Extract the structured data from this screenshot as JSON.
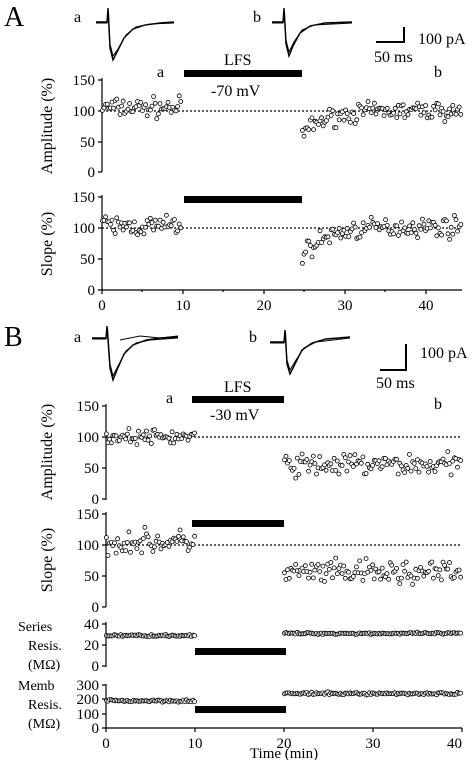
{
  "panels": {
    "A": {
      "label": "A",
      "trace_a_label": "a",
      "trace_b_label": "b",
      "scale_y_label": "100 pA",
      "scale_x_label": "50 ms",
      "lfs_label": "LFS",
      "voltage_label": "-70 mV",
      "marker_a": "a",
      "marker_b": "b",
      "amp_ylabel": "Amplitude (%)",
      "slope_ylabel": "Slope (%)",
      "x_ticks": [
        "0",
        "10",
        "20",
        "30",
        "40"
      ],
      "amp_y_ticks": [
        "150",
        "100",
        "50",
        "0"
      ],
      "slope_y_ticks": [
        "150",
        "100",
        "50",
        "0"
      ]
    },
    "B": {
      "label": "B",
      "trace_a_label": "a",
      "trace_b_label": "b",
      "scale_y_label": "100 pA",
      "scale_x_label": "50 ms",
      "lfs_label": "LFS",
      "voltage_label": "-30 mV",
      "marker_a": "a",
      "marker_b": "b",
      "amp_ylabel": "Amplitude (%)",
      "slope_ylabel": "Slope (%)",
      "series_label_1": "Series",
      "series_label_2": "Resis.",
      "series_label_3": "(MΩ)",
      "memb_label_1": "Memb",
      "memb_label_2": "Resis.",
      "memb_label_3": "(MΩ)",
      "x_ticks": [
        "0",
        "10",
        "20",
        "30",
        "40"
      ],
      "amp_y_ticks": [
        "150",
        "100",
        "50",
        "0"
      ],
      "slope_y_ticks": [
        "150",
        "100",
        "50",
        "0"
      ],
      "series_y_ticks": [
        "40",
        "20",
        "0"
      ],
      "memb_y_ticks": [
        "300",
        "200",
        "100",
        "0"
      ],
      "xlabel": "Time (min)"
    }
  },
  "chart_data": [
    {
      "panel": "A",
      "type": "scatter",
      "ylabel": "Amplitude (%)",
      "xlim": [
        0,
        45
      ],
      "ylim": [
        0,
        150
      ],
      "baseline": 100,
      "stim_bar": [
        10,
        25
      ],
      "segments": [
        {
          "x_range": [
            0,
            10
          ],
          "mean": 105,
          "spread": 12
        },
        {
          "x_range": [
            25,
            45
          ],
          "start": 62,
          "end": 100,
          "tau_min": 3,
          "spread": 11
        }
      ]
    },
    {
      "panel": "A",
      "type": "scatter",
      "ylabel": "Slope (%)",
      "xlim": [
        0,
        45
      ],
      "ylim": [
        0,
        150
      ],
      "baseline": 100,
      "stim_bar": [
        10,
        25
      ],
      "segments": [
        {
          "x_range": [
            0,
            10
          ],
          "mean": 103,
          "spread": 13
        },
        {
          "x_range": [
            25,
            45
          ],
          "start": 55,
          "end": 102,
          "tau_min": 3,
          "spread": 12
        }
      ]
    },
    {
      "panel": "B",
      "type": "scatter",
      "ylabel": "Amplitude (%)",
      "xlim": [
        0,
        40
      ],
      "ylim": [
        0,
        150
      ],
      "baseline": 100,
      "stim_bar": [
        10,
        20
      ],
      "segments": [
        {
          "x_range": [
            0,
            10
          ],
          "mean": 100,
          "spread": 9
        },
        {
          "x_range": [
            20,
            40
          ],
          "mean": 55,
          "spread": 14
        }
      ]
    },
    {
      "panel": "B",
      "type": "scatter",
      "ylabel": "Slope (%)",
      "xlim": [
        0,
        40
      ],
      "ylim": [
        0,
        150
      ],
      "baseline": 100,
      "stim_bar": [
        10,
        20
      ],
      "segments": [
        {
          "x_range": [
            0,
            10
          ],
          "mean": 105,
          "spread": 14
        },
        {
          "x_range": [
            20,
            40
          ],
          "mean": 55,
          "spread": 15
        }
      ]
    },
    {
      "panel": "B",
      "type": "scatter",
      "ylabel": "Series Resis. (MΩ)",
      "xlim": [
        0,
        40
      ],
      "ylim": [
        0,
        40
      ],
      "stim_bar": [
        10,
        20
      ],
      "stim_bar_level": 15,
      "segments": [
        {
          "x_range": [
            0,
            10
          ],
          "mean": 29,
          "spread": 0.7
        },
        {
          "x_range": [
            20,
            40
          ],
          "mean": 31,
          "spread": 0.7
        }
      ]
    },
    {
      "panel": "B",
      "type": "scatter",
      "ylabel": "Memb Resis. (MΩ)",
      "xlim": [
        0,
        40
      ],
      "ylim": [
        0,
        300
      ],
      "stim_bar": [
        10,
        20
      ],
      "stim_bar_level": 100,
      "segments": [
        {
          "x_range": [
            0,
            10
          ],
          "mean": 190,
          "spread": 7
        },
        {
          "x_range": [
            20,
            40
          ],
          "mean": 240,
          "spread": 7
        }
      ]
    }
  ]
}
